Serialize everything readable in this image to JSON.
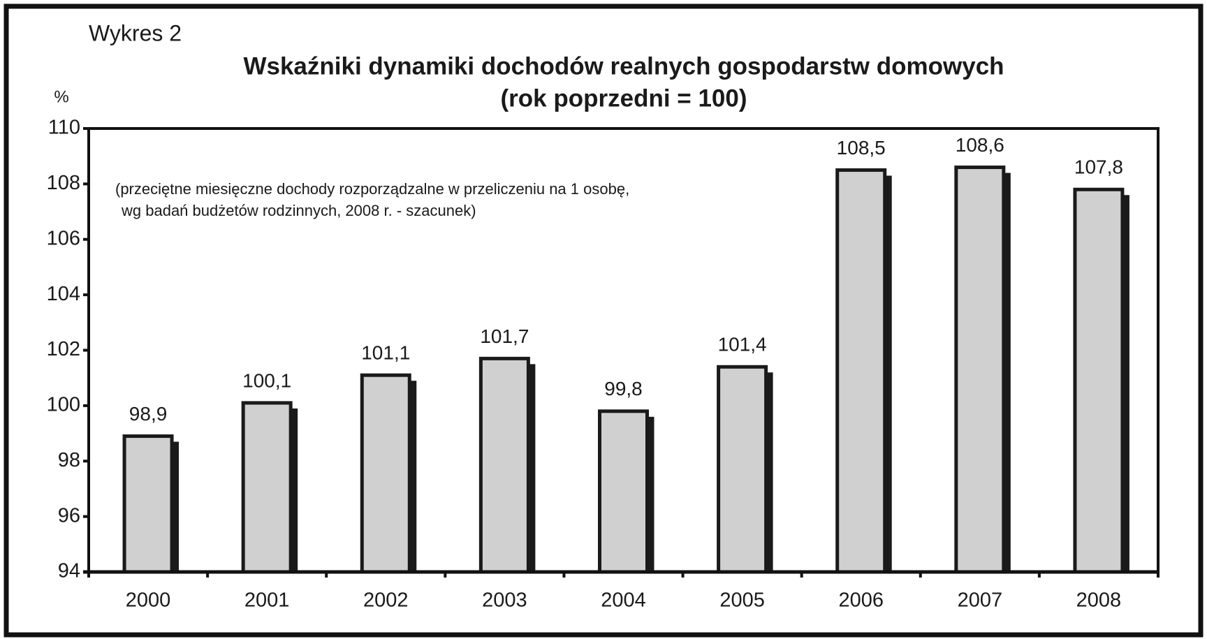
{
  "chart_data": {
    "type": "bar",
    "label": "Wykres 2",
    "title": "Wskaźniki dynamiki dochodów realnych gospodarstw domowych",
    "subtitle": "(rok poprzedni = 100)",
    "y_label": "%",
    "annotation": [
      "(przeciętne miesięczne dochody rozporządzalne w przeliczeniu na 1 osobę,",
      "wg badań budżetów rodzinnych, 2008 r. - szacunek)"
    ],
    "categories": [
      "2000",
      "2001",
      "2002",
      "2003",
      "2004",
      "2005",
      "2006",
      "2007",
      "2008"
    ],
    "values": [
      98.9,
      100.1,
      101.1,
      101.7,
      99.8,
      101.4,
      108.5,
      108.6,
      107.8
    ],
    "value_labels": [
      "98,9",
      "100,1",
      "101,1",
      "101,7",
      "99,8",
      "101,4",
      "108,5",
      "108,6",
      "107,8"
    ],
    "color": "#d0d0d0",
    "ylim": [
      94,
      110
    ],
    "yticks": [
      94,
      96,
      98,
      100,
      102,
      104,
      106,
      108,
      110
    ],
    "grid": false
  }
}
